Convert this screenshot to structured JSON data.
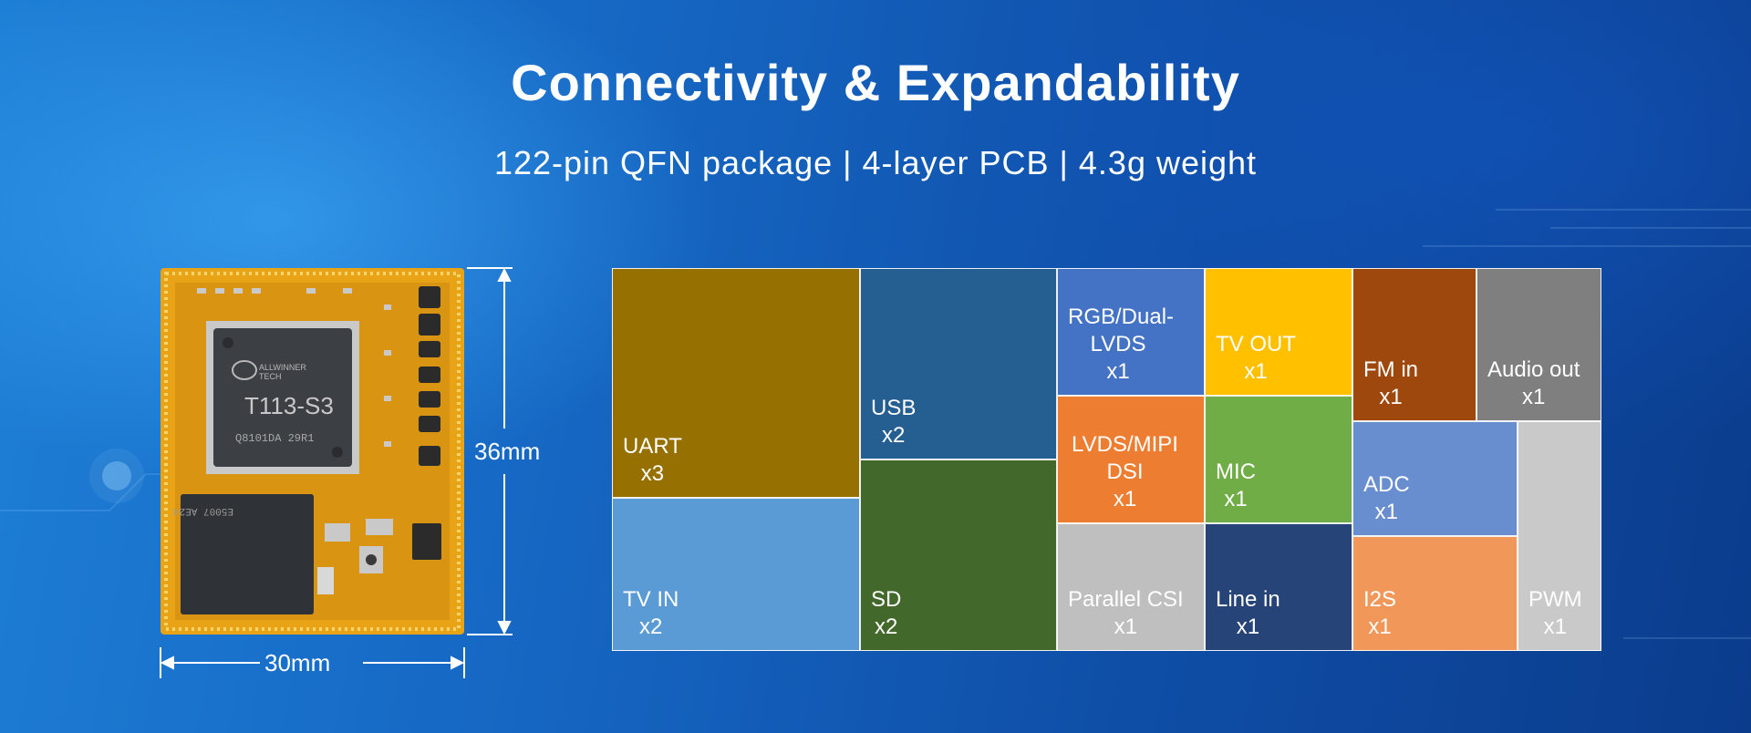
{
  "header": {
    "title": "Connectivity & Expandability",
    "subtitle": "122-pin QFN package | 4-layer PCB | 4.3g weight"
  },
  "module": {
    "chip_brand_line1": "ALLWINNER",
    "chip_brand_line2": "TECH",
    "chip_model": "T113-S3",
    "chip_code": "Q8101DA 29R1",
    "memory_code": "E5007 AE24",
    "width_label": "30mm",
    "height_label": "36mm"
  },
  "interfaces": [
    {
      "name": "UART",
      "count": "x3",
      "color": "#967000"
    },
    {
      "name": "TV IN",
      "count": "x2",
      "color": "#5b9bd5"
    },
    {
      "name": "USB",
      "count": "x2",
      "color": "#255e91"
    },
    {
      "name": "SD",
      "count": "x2",
      "color": "#43682b"
    },
    {
      "name": "RGB/Dual-LVDS",
      "count": "x1",
      "color": "#4472c4"
    },
    {
      "name": "LVDS/MIPI DSI",
      "count": "x1",
      "color": "#ed7d31"
    },
    {
      "name": "Parallel CSI",
      "count": "x1",
      "color": "#bfbfbf"
    },
    {
      "name": "TV OUT",
      "count": "x1",
      "color": "#ffc000"
    },
    {
      "name": "MIC",
      "count": "x1",
      "color": "#70ad47"
    },
    {
      "name": "Line in",
      "count": "x1",
      "color": "#264478"
    },
    {
      "name": "FM in",
      "count": "x1",
      "color": "#9e480e"
    },
    {
      "name": "Audio out",
      "count": "x1",
      "color": "#7f7f7f"
    },
    {
      "name": "ADC",
      "count": "x1",
      "color": "#698ed0"
    },
    {
      "name": "I2S",
      "count": "x1",
      "color": "#f1975a"
    },
    {
      "name": "PWM",
      "count": "x1",
      "color": "#c9c9c9"
    }
  ]
}
